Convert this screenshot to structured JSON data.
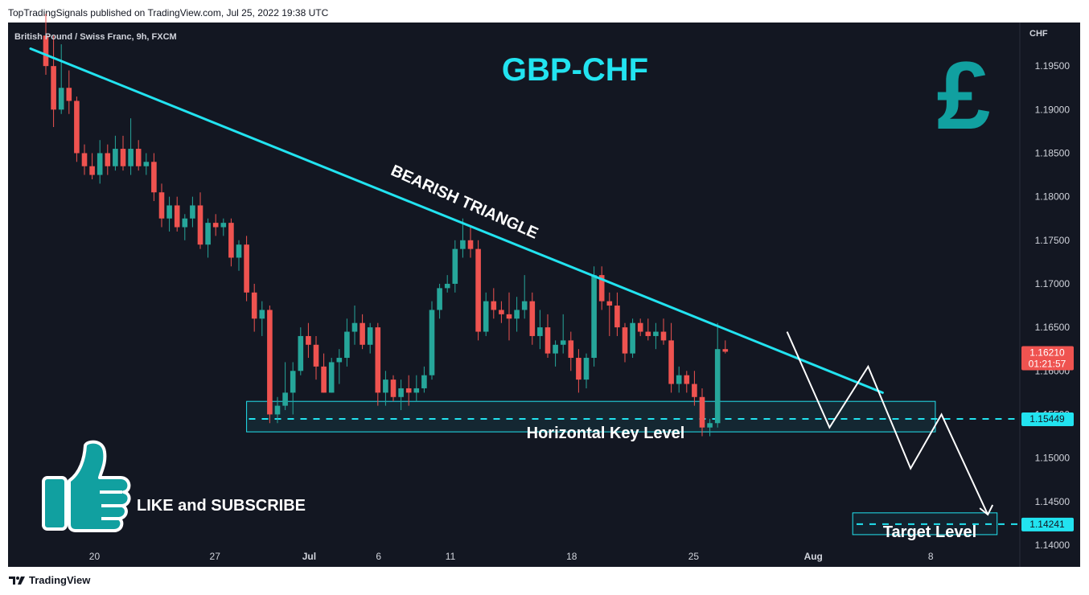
{
  "header": {
    "published": "TopTradingSignals published on TradingView.com, Jul 25, 2022 19:38 UTC"
  },
  "footer": {
    "brand": "TradingView",
    "logo_icon": "tv-logo-icon"
  },
  "symbol_title": "British Pound / Swiss Franc, 9h, FXCM",
  "currency_label": "CHF",
  "chart_title": "GBP-CHF",
  "icons": {
    "pound": "£"
  },
  "annotations": {
    "triangle": "BEARISH TRIANGLE",
    "key_level": "Horizontal Key Level",
    "target": "Target Level",
    "cta": "LIKE and SUBSCRIBE"
  },
  "price_labels": {
    "current": "1.16210",
    "countdown": "01:21:57",
    "key": "1.15449",
    "target": "1.14241",
    "hidden_key_tick": "1.15500",
    "hidden_tick": "1.16000"
  },
  "colors": {
    "background": "#131722",
    "bull": "#26a69a",
    "bear": "#ef5350",
    "accent": "#22e3f0",
    "pound_icon": "#11a0a0"
  },
  "chart_data": {
    "type": "candlestick",
    "title": "British Pound / Swiss Franc, 9h, FXCM",
    "ylabel": "CHF",
    "ylim": [
      1.1375,
      1.2
    ],
    "y_ticks": [
      "1.19500",
      "1.19000",
      "1.18500",
      "1.18000",
      "1.17500",
      "1.17000",
      "1.16500",
      "1.16000",
      "1.15500",
      "1.15000",
      "1.14500",
      "1.14000"
    ],
    "x_ticks": [
      "20",
      "27",
      "Jul",
      "6",
      "11",
      "18",
      "25",
      "Aug",
      "8"
    ],
    "candles": [
      [
        1.1985,
        1.201,
        1.194,
        1.195
      ],
      [
        1.195,
        1.1985,
        1.188,
        1.19
      ],
      [
        1.19,
        1.1975,
        1.1895,
        1.1925
      ],
      [
        1.1925,
        1.1945,
        1.1895,
        1.191
      ],
      [
        1.191,
        1.1915,
        1.184,
        1.185
      ],
      [
        1.185,
        1.186,
        1.1825,
        1.1835
      ],
      [
        1.1835,
        1.185,
        1.182,
        1.1825
      ],
      [
        1.1825,
        1.1865,
        1.1815,
        1.185
      ],
      [
        1.185,
        1.186,
        1.1825,
        1.1835
      ],
      [
        1.1835,
        1.187,
        1.183,
        1.1855
      ],
      [
        1.1855,
        1.187,
        1.183,
        1.1835
      ],
      [
        1.1835,
        1.189,
        1.1825,
        1.1855
      ],
      [
        1.1855,
        1.1865,
        1.183,
        1.1835
      ],
      [
        1.1835,
        1.185,
        1.1825,
        1.184
      ],
      [
        1.184,
        1.185,
        1.1795,
        1.1805
      ],
      [
        1.1805,
        1.1815,
        1.1765,
        1.1775
      ],
      [
        1.1775,
        1.18,
        1.176,
        1.179
      ],
      [
        1.179,
        1.18,
        1.176,
        1.1765
      ],
      [
        1.1765,
        1.178,
        1.175,
        1.1775
      ],
      [
        1.1775,
        1.18,
        1.1765,
        1.179
      ],
      [
        1.179,
        1.1805,
        1.174,
        1.1745
      ],
      [
        1.1745,
        1.1775,
        1.173,
        1.177
      ],
      [
        1.177,
        1.178,
        1.1755,
        1.1765
      ],
      [
        1.1765,
        1.1775,
        1.1755,
        1.177
      ],
      [
        1.177,
        1.1775,
        1.172,
        1.173
      ],
      [
        1.173,
        1.175,
        1.1715,
        1.1745
      ],
      [
        1.1745,
        1.1755,
        1.168,
        1.169
      ],
      [
        1.169,
        1.17,
        1.1645,
        1.166
      ],
      [
        1.166,
        1.168,
        1.164,
        1.167
      ],
      [
        1.167,
        1.1675,
        1.154,
        1.155
      ],
      [
        1.155,
        1.157,
        1.154,
        1.156
      ],
      [
        1.156,
        1.161,
        1.1555,
        1.1575
      ],
      [
        1.1575,
        1.161,
        1.155,
        1.16
      ],
      [
        1.16,
        1.165,
        1.1595,
        1.164
      ],
      [
        1.164,
        1.1655,
        1.1615,
        1.163
      ],
      [
        1.163,
        1.164,
        1.159,
        1.1605
      ],
      [
        1.1605,
        1.162,
        1.1575,
        1.1575
      ],
      [
        1.1575,
        1.1615,
        1.1575,
        1.161
      ],
      [
        1.161,
        1.1625,
        1.1585,
        1.1615
      ],
      [
        1.1615,
        1.166,
        1.1605,
        1.1645
      ],
      [
        1.1645,
        1.1675,
        1.163,
        1.1655
      ],
      [
        1.1655,
        1.1665,
        1.1625,
        1.163
      ],
      [
        1.163,
        1.1655,
        1.162,
        1.165
      ],
      [
        1.165,
        1.1655,
        1.156,
        1.1575
      ],
      [
        1.1575,
        1.16,
        1.156,
        1.159
      ],
      [
        1.159,
        1.1595,
        1.1565,
        1.157
      ],
      [
        1.157,
        1.159,
        1.1555,
        1.158
      ],
      [
        1.158,
        1.1595,
        1.156,
        1.1575
      ],
      [
        1.1575,
        1.1595,
        1.1565,
        1.158
      ],
      [
        1.158,
        1.1605,
        1.1575,
        1.1595
      ],
      [
        1.1595,
        1.168,
        1.159,
        1.167
      ],
      [
        1.167,
        1.17,
        1.166,
        1.1695
      ],
      [
        1.1695,
        1.171,
        1.169,
        1.17
      ],
      [
        1.17,
        1.175,
        1.169,
        1.174
      ],
      [
        1.174,
        1.1775,
        1.173,
        1.175
      ],
      [
        1.175,
        1.1765,
        1.173,
        1.174
      ],
      [
        1.174,
        1.175,
        1.1635,
        1.1645
      ],
      [
        1.1645,
        1.169,
        1.164,
        1.168
      ],
      [
        1.168,
        1.1695,
        1.166,
        1.167
      ],
      [
        1.167,
        1.168,
        1.1655,
        1.1665
      ],
      [
        1.1665,
        1.169,
        1.1635,
        1.166
      ],
      [
        1.166,
        1.1685,
        1.1645,
        1.167
      ],
      [
        1.167,
        1.171,
        1.166,
        1.168
      ],
      [
        1.168,
        1.169,
        1.163,
        1.164
      ],
      [
        1.164,
        1.167,
        1.1625,
        1.165
      ],
      [
        1.165,
        1.1665,
        1.1615,
        1.162
      ],
      [
        1.162,
        1.1635,
        1.1605,
        1.163
      ],
      [
        1.163,
        1.1665,
        1.162,
        1.1635
      ],
      [
        1.1635,
        1.1645,
        1.16,
        1.1615
      ],
      [
        1.1615,
        1.1625,
        1.1575,
        1.159
      ],
      [
        1.159,
        1.162,
        1.158,
        1.1615
      ],
      [
        1.1615,
        1.172,
        1.1605,
        1.171
      ],
      [
        1.171,
        1.172,
        1.167,
        1.168
      ],
      [
        1.168,
        1.169,
        1.164,
        1.1675
      ],
      [
        1.1675,
        1.169,
        1.164,
        1.165
      ],
      [
        1.165,
        1.1655,
        1.161,
        1.162
      ],
      [
        1.162,
        1.166,
        1.1615,
        1.1655
      ],
      [
        1.1655,
        1.166,
        1.164,
        1.1645
      ],
      [
        1.1645,
        1.166,
        1.1635,
        1.164
      ],
      [
        1.164,
        1.1655,
        1.1625,
        1.1645
      ],
      [
        1.1645,
        1.166,
        1.163,
        1.1635
      ],
      [
        1.1635,
        1.1655,
        1.1575,
        1.1585
      ],
      [
        1.1585,
        1.1605,
        1.1575,
        1.1595
      ],
      [
        1.1595,
        1.16,
        1.1575,
        1.1585
      ],
      [
        1.1585,
        1.16,
        1.156,
        1.157
      ],
      [
        1.157,
        1.158,
        1.1525,
        1.1535
      ],
      [
        1.1535,
        1.1545,
        1.1525,
        1.154
      ],
      [
        1.154,
        1.1655,
        1.1535,
        1.1625
      ],
      [
        1.1625,
        1.1635,
        1.162,
        1.1622
      ]
    ],
    "key_level": 1.15449,
    "key_zone": [
      1.153,
      1.1565
    ],
    "target_level": 1.14241,
    "target_zone": [
      1.1412,
      1.1437
    ],
    "trendline": [
      [
        0,
        1.197
      ],
      [
        99,
        1.1575
      ]
    ],
    "projection": [
      [
        96.0,
        1.1645
      ],
      [
        101.5,
        1.1535
      ],
      [
        106.5,
        1.1605
      ],
      [
        112.0,
        1.1488
      ],
      [
        116.0,
        1.155
      ],
      [
        122.0,
        1.1435
      ]
    ]
  }
}
